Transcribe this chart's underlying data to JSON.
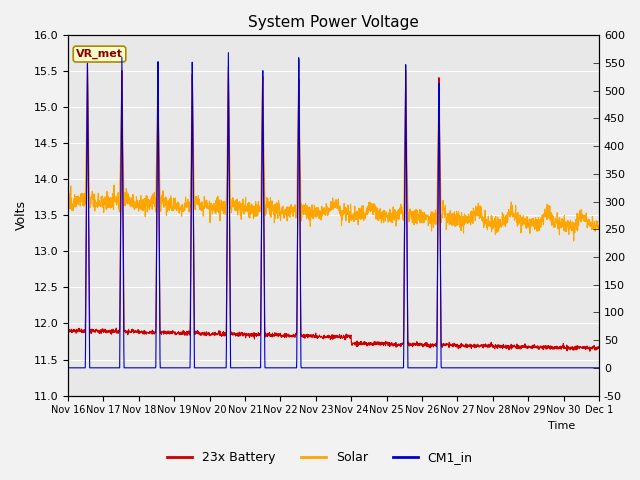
{
  "title": "System Power Voltage",
  "xlabel": "Time",
  "ylabel_left": "Volts",
  "ylim_left": [
    11.0,
    16.0
  ],
  "ylim_right": [
    -50,
    600
  ],
  "background_color": "#e8e8e8",
  "battery_color": "#cc0000",
  "solar_color": "#ffa500",
  "cm1_color": "#0000cc",
  "title_fontsize": 11,
  "annotation_text": "VR_met",
  "annotation_bg": "#ffffcc",
  "annotation_border": "#aa8800",
  "annotation_text_color": "#880000",
  "xtick_labels": [
    "Nov 16",
    "Nov 17",
    "Nov 18",
    "Nov 19",
    "Nov 20",
    "Nov 21",
    "Nov 22",
    "Nov 23",
    "Nov 24",
    "Nov 25",
    "Nov 26",
    "Nov 27",
    "Nov 28",
    "Nov 29",
    "Nov 30",
    "Dec 1"
  ],
  "legend_labels": [
    "23x Battery",
    "Solar",
    "CM1_in"
  ],
  "yticks_left": [
    11.0,
    11.5,
    12.0,
    12.5,
    13.0,
    13.5,
    14.0,
    14.5,
    15.0,
    15.5,
    16.0
  ],
  "yticks_right": [
    -50,
    0,
    50,
    100,
    150,
    200,
    250,
    300,
    350,
    400,
    450,
    500,
    550,
    600
  ],
  "n_days": 15,
  "pts_per_day": 144
}
